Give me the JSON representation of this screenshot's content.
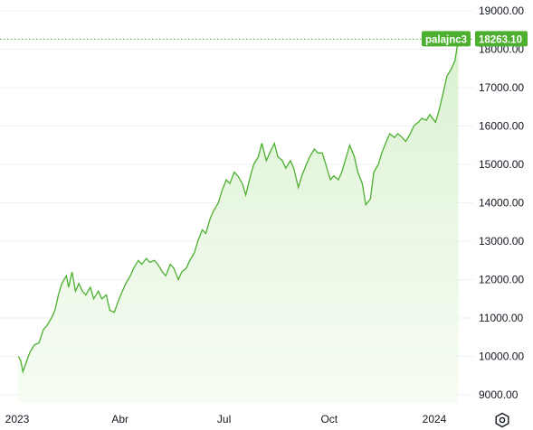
{
  "chart_data": {
    "type": "area",
    "title": "",
    "xlabel": "",
    "ylabel": "",
    "ylim": [
      8800,
      19300
    ],
    "xlim": [
      "2023-01-01",
      "2024-02-09"
    ],
    "grid": "horizontal",
    "y_ticks": [
      "9000.00",
      "10000.00",
      "11000.00",
      "12000.00",
      "13000.00",
      "14000.00",
      "15000.00",
      "16000.00",
      "17000.00",
      "18000.00",
      "19000.00"
    ],
    "x_ticks": [
      {
        "label": "2023",
        "date": "2023-01-01"
      },
      {
        "label": "Abr",
        "date": "2023-04-01"
      },
      {
        "label": "Jul",
        "date": "2023-07-01"
      },
      {
        "label": "Oct",
        "date": "2023-10-01"
      },
      {
        "label": "2024",
        "date": "2024-01-01"
      }
    ],
    "series": [
      {
        "name": "palajnc3",
        "color": "#4caf2f",
        "last_value": "18263.10",
        "points": [
          [
            "2023-01-02",
            10000
          ],
          [
            "2023-01-04",
            9900
          ],
          [
            "2023-01-06",
            9600
          ],
          [
            "2023-01-09",
            9850
          ],
          [
            "2023-01-12",
            10100
          ],
          [
            "2023-01-16",
            10300
          ],
          [
            "2023-01-20",
            10350
          ],
          [
            "2023-01-24",
            10700
          ],
          [
            "2023-01-27",
            10800
          ],
          [
            "2023-01-31",
            11000
          ],
          [
            "2023-02-03",
            11200
          ],
          [
            "2023-02-06",
            11600
          ],
          [
            "2023-02-09",
            11900
          ],
          [
            "2023-02-13",
            12100
          ],
          [
            "2023-02-15",
            11800
          ],
          [
            "2023-02-18",
            12200
          ],
          [
            "2023-02-21",
            11700
          ],
          [
            "2023-02-24",
            11900
          ],
          [
            "2023-02-27",
            11700
          ],
          [
            "2023-03-02",
            11600
          ],
          [
            "2023-03-06",
            11800
          ],
          [
            "2023-03-09",
            11500
          ],
          [
            "2023-03-13",
            11700
          ],
          [
            "2023-03-16",
            11500
          ],
          [
            "2023-03-20",
            11600
          ],
          [
            "2023-03-23",
            11200
          ],
          [
            "2023-03-27",
            11150
          ],
          [
            "2023-03-30",
            11400
          ],
          [
            "2023-04-03",
            11700
          ],
          [
            "2023-04-06",
            11900
          ],
          [
            "2023-04-10",
            12100
          ],
          [
            "2023-04-13",
            12300
          ],
          [
            "2023-04-17",
            12500
          ],
          [
            "2023-04-20",
            12400
          ],
          [
            "2023-04-24",
            12550
          ],
          [
            "2023-04-27",
            12450
          ],
          [
            "2023-05-01",
            12500
          ],
          [
            "2023-05-04",
            12400
          ],
          [
            "2023-05-08",
            12200
          ],
          [
            "2023-05-11",
            12100
          ],
          [
            "2023-05-15",
            12400
          ],
          [
            "2023-05-18",
            12300
          ],
          [
            "2023-05-22",
            12000
          ],
          [
            "2023-05-25",
            12200
          ],
          [
            "2023-05-29",
            12300
          ],
          [
            "2023-06-01",
            12500
          ],
          [
            "2023-06-05",
            12700
          ],
          [
            "2023-06-08",
            13000
          ],
          [
            "2023-06-12",
            13300
          ],
          [
            "2023-06-15",
            13200
          ],
          [
            "2023-06-19",
            13600
          ],
          [
            "2023-06-22",
            13800
          ],
          [
            "2023-06-26",
            14000
          ],
          [
            "2023-06-29",
            14300
          ],
          [
            "2023-07-03",
            14600
          ],
          [
            "2023-07-06",
            14500
          ],
          [
            "2023-07-10",
            14800
          ],
          [
            "2023-07-13",
            14700
          ],
          [
            "2023-07-17",
            14500
          ],
          [
            "2023-07-20",
            14200
          ],
          [
            "2023-07-24",
            14700
          ],
          [
            "2023-07-27",
            15000
          ],
          [
            "2023-07-31",
            15200
          ],
          [
            "2023-08-03",
            15550
          ],
          [
            "2023-08-07",
            15100
          ],
          [
            "2023-08-10",
            15300
          ],
          [
            "2023-08-14",
            15550
          ],
          [
            "2023-08-17",
            15200
          ],
          [
            "2023-08-21",
            15100
          ],
          [
            "2023-08-24",
            14900
          ],
          [
            "2023-08-28",
            15100
          ],
          [
            "2023-08-31",
            14900
          ],
          [
            "2023-09-04",
            14400
          ],
          [
            "2023-09-07",
            14700
          ],
          [
            "2023-09-11",
            15000
          ],
          [
            "2023-09-14",
            15200
          ],
          [
            "2023-09-18",
            15400
          ],
          [
            "2023-09-21",
            15300
          ],
          [
            "2023-09-25",
            15300
          ],
          [
            "2023-09-28",
            15000
          ],
          [
            "2023-10-02",
            14600
          ],
          [
            "2023-10-05",
            14700
          ],
          [
            "2023-10-09",
            14600
          ],
          [
            "2023-10-12",
            14800
          ],
          [
            "2023-10-16",
            15200
          ],
          [
            "2023-10-19",
            15500
          ],
          [
            "2023-10-23",
            15200
          ],
          [
            "2023-10-26",
            14800
          ],
          [
            "2023-10-30",
            14500
          ],
          [
            "2023-11-02",
            13950
          ],
          [
            "2023-11-06",
            14100
          ],
          [
            "2023-11-09",
            14800
          ],
          [
            "2023-11-13",
            15000
          ],
          [
            "2023-11-16",
            15300
          ],
          [
            "2023-11-20",
            15600
          ],
          [
            "2023-11-23",
            15800
          ],
          [
            "2023-11-27",
            15700
          ],
          [
            "2023-11-30",
            15800
          ],
          [
            "2023-12-04",
            15700
          ],
          [
            "2023-12-07",
            15600
          ],
          [
            "2023-12-11",
            15800
          ],
          [
            "2023-12-14",
            16000
          ],
          [
            "2023-12-18",
            16100
          ],
          [
            "2023-12-21",
            16200
          ],
          [
            "2023-12-25",
            16150
          ],
          [
            "2023-12-28",
            16300
          ],
          [
            "2024-01-02",
            16100
          ],
          [
            "2024-01-05",
            16400
          ],
          [
            "2024-01-09",
            16900
          ],
          [
            "2024-01-12",
            17300
          ],
          [
            "2024-01-16",
            17500
          ],
          [
            "2024-01-19",
            17700
          ],
          [
            "2024-01-22",
            18263.1
          ]
        ]
      }
    ]
  },
  "colors": {
    "line": "#4caf2f",
    "fill_top": "#d6f0cc",
    "fill_bottom": "#f2fbee",
    "grid": "#eef0f3",
    "tag": "#4caf2f"
  },
  "settings_icon": "gear-icon"
}
